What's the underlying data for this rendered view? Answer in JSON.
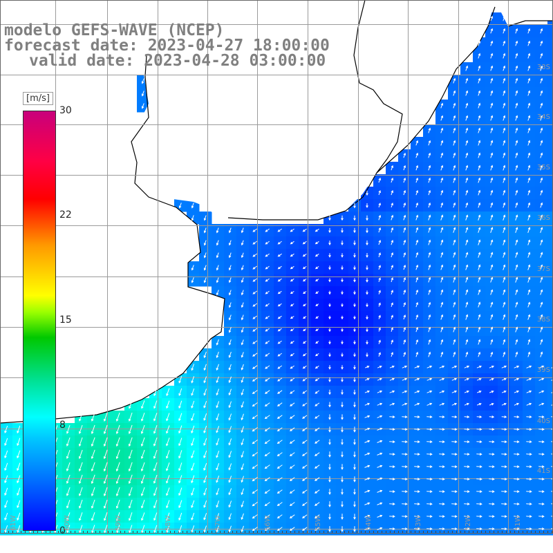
{
  "title": {
    "line1": "modelo GEFS-WAVE (NCEP)",
    "line2": "forecast date: 2023-04-27 18:00:00",
    "line3": "valid date: 2023-04-28 03:00:00"
  },
  "colorbar": {
    "unit": "[m/s]",
    "ticks": [
      "30",
      "22",
      "15",
      "8",
      "0"
    ],
    "tick_values": [
      30,
      22,
      15,
      8,
      0
    ],
    "min": 0,
    "max": 30
  },
  "map": {
    "lon_labels": [
      "61W",
      "60W",
      "59W",
      "58W",
      "57W",
      "56W",
      "55W",
      "54W",
      "53W",
      "52W",
      "51W"
    ],
    "lat_labels": [
      "33S",
      "34S",
      "35S",
      "36S",
      "37S",
      "38S",
      "39S",
      "40S",
      "41S"
    ],
    "land_color": "#ffffff",
    "coast_color": "#000000",
    "grid_color": "#9a9a9a",
    "arrow_color": "#ffffff"
  }
}
